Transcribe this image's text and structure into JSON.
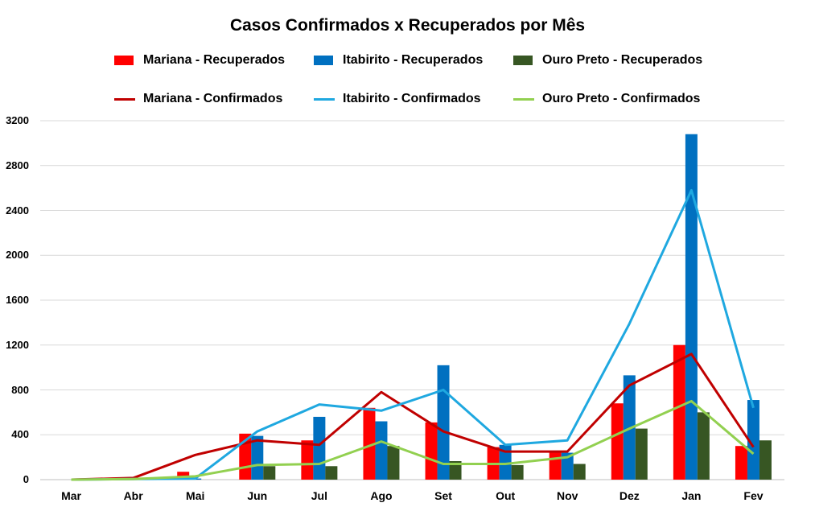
{
  "chart_data": {
    "type": "bar",
    "title": "Casos Confirmados x Recuperados por Mês",
    "categories": [
      "Mar",
      "Abr",
      "Mai",
      "Jun",
      "Jul",
      "Ago",
      "Set",
      "Out",
      "Nov",
      "Dez",
      "Jan",
      "Fev"
    ],
    "ylim": [
      0,
      3200
    ],
    "yticks": [
      0,
      400,
      800,
      1200,
      1600,
      2000,
      2400,
      2800,
      3200
    ],
    "grid": true,
    "legend_position": "top",
    "bar_series": [
      {
        "name": "Mariana - Recuperados",
        "color": "#ff0000",
        "values": [
          0,
          0,
          70,
          410,
          350,
          640,
          510,
          290,
          250,
          680,
          1200,
          300
        ]
      },
      {
        "name": "Itabirito - Recuperados",
        "color": "#0070c0",
        "values": [
          0,
          0,
          10,
          390,
          560,
          520,
          1020,
          310,
          240,
          930,
          3080,
          710
        ]
      },
      {
        "name": "Ouro Preto - Recuperados",
        "color": "#375623",
        "values": [
          0,
          0,
          0,
          120,
          120,
          300,
          165,
          130,
          140,
          455,
          600,
          350
        ]
      }
    ],
    "line_series": [
      {
        "name": "Mariana - Confirmados",
        "color": "#c00000",
        "values": [
          0,
          15,
          220,
          350,
          310,
          780,
          430,
          250,
          250,
          840,
          1120,
          290
        ]
      },
      {
        "name": "Itabirito - Confirmados",
        "color": "#1fa8e0",
        "values": [
          0,
          5,
          10,
          430,
          670,
          615,
          800,
          310,
          350,
          1390,
          2580,
          640
        ]
      },
      {
        "name": "Ouro Preto - Confirmados",
        "color": "#92d050",
        "values": [
          0,
          5,
          30,
          130,
          140,
          340,
          140,
          140,
          200,
          455,
          700,
          230
        ]
      }
    ]
  }
}
